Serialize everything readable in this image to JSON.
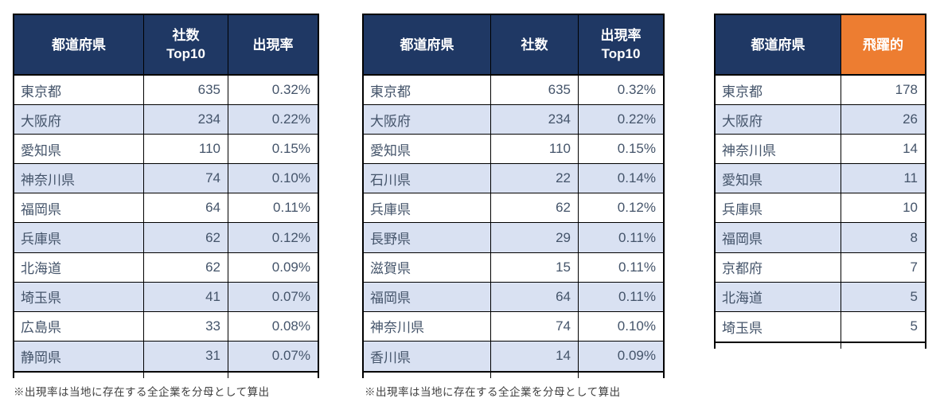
{
  "colors": {
    "header_navy": "#1F3864",
    "header_orange": "#ED7D31",
    "row_alt_bg": "#D9E1F2",
    "border": "#000000",
    "body_text": "#44546A",
    "footnote_text": "#404040"
  },
  "tables": [
    {
      "name": "prefecture-company-count-top10",
      "headers": [
        {
          "key": "prefecture",
          "lines": [
            "都道府県"
          ],
          "accent": false
        },
        {
          "key": "company-count-top10",
          "lines": [
            "社数",
            "Top10"
          ],
          "accent": false
        },
        {
          "key": "appearance-rate",
          "lines": [
            "出現率"
          ],
          "accent": false
        }
      ],
      "rows": [
        [
          "東京都",
          "635",
          "0.32%"
        ],
        [
          "大阪府",
          "234",
          "0.22%"
        ],
        [
          "愛知県",
          "110",
          "0.15%"
        ],
        [
          "神奈川県",
          "74",
          "0.10%"
        ],
        [
          "福岡県",
          "64",
          "0.11%"
        ],
        [
          "兵庫県",
          "62",
          "0.12%"
        ],
        [
          "北海道",
          "62",
          "0.09%"
        ],
        [
          "埼玉県",
          "41",
          "0.07%"
        ],
        [
          "広島県",
          "33",
          "0.08%"
        ],
        [
          "静岡県",
          "31",
          "0.07%"
        ]
      ],
      "footnote": "※出現率は当地に存在する全企業を分母として算出"
    },
    {
      "name": "prefecture-appearance-rate-top10",
      "headers": [
        {
          "key": "prefecture",
          "lines": [
            "都道府県"
          ],
          "accent": false
        },
        {
          "key": "company-count",
          "lines": [
            "社数"
          ],
          "accent": false
        },
        {
          "key": "appearance-rate-top10",
          "lines": [
            "出現率",
            "Top10"
          ],
          "accent": false
        }
      ],
      "rows": [
        [
          "東京都",
          "635",
          "0.32%"
        ],
        [
          "大阪府",
          "234",
          "0.22%"
        ],
        [
          "愛知県",
          "110",
          "0.15%"
        ],
        [
          "石川県",
          "22",
          "0.14%"
        ],
        [
          "兵庫県",
          "62",
          "0.12%"
        ],
        [
          "長野県",
          "29",
          "0.11%"
        ],
        [
          "滋賀県",
          "15",
          "0.11%"
        ],
        [
          "福岡県",
          "64",
          "0.11%"
        ],
        [
          "神奈川県",
          "74",
          "0.10%"
        ],
        [
          "香川県",
          "14",
          "0.09%"
        ]
      ],
      "footnote": "※出現率は当地に存在する全企業を分母として算出"
    },
    {
      "name": "prefecture-hiyakuteki",
      "headers": [
        {
          "key": "prefecture",
          "lines": [
            "都道府県"
          ],
          "accent": false
        },
        {
          "key": "hiyakuteki",
          "lines": [
            "飛躍的"
          ],
          "accent": true
        }
      ],
      "rows": [
        [
          "東京都",
          "178"
        ],
        [
          "大阪府",
          "26"
        ],
        [
          "神奈川県",
          "14"
        ],
        [
          "愛知県",
          "11"
        ],
        [
          "兵庫県",
          "10"
        ],
        [
          "福岡県",
          "8"
        ],
        [
          "京都府",
          "7"
        ],
        [
          "北海道",
          "5"
        ],
        [
          "埼玉県",
          "5"
        ]
      ],
      "footnote": null
    }
  ]
}
